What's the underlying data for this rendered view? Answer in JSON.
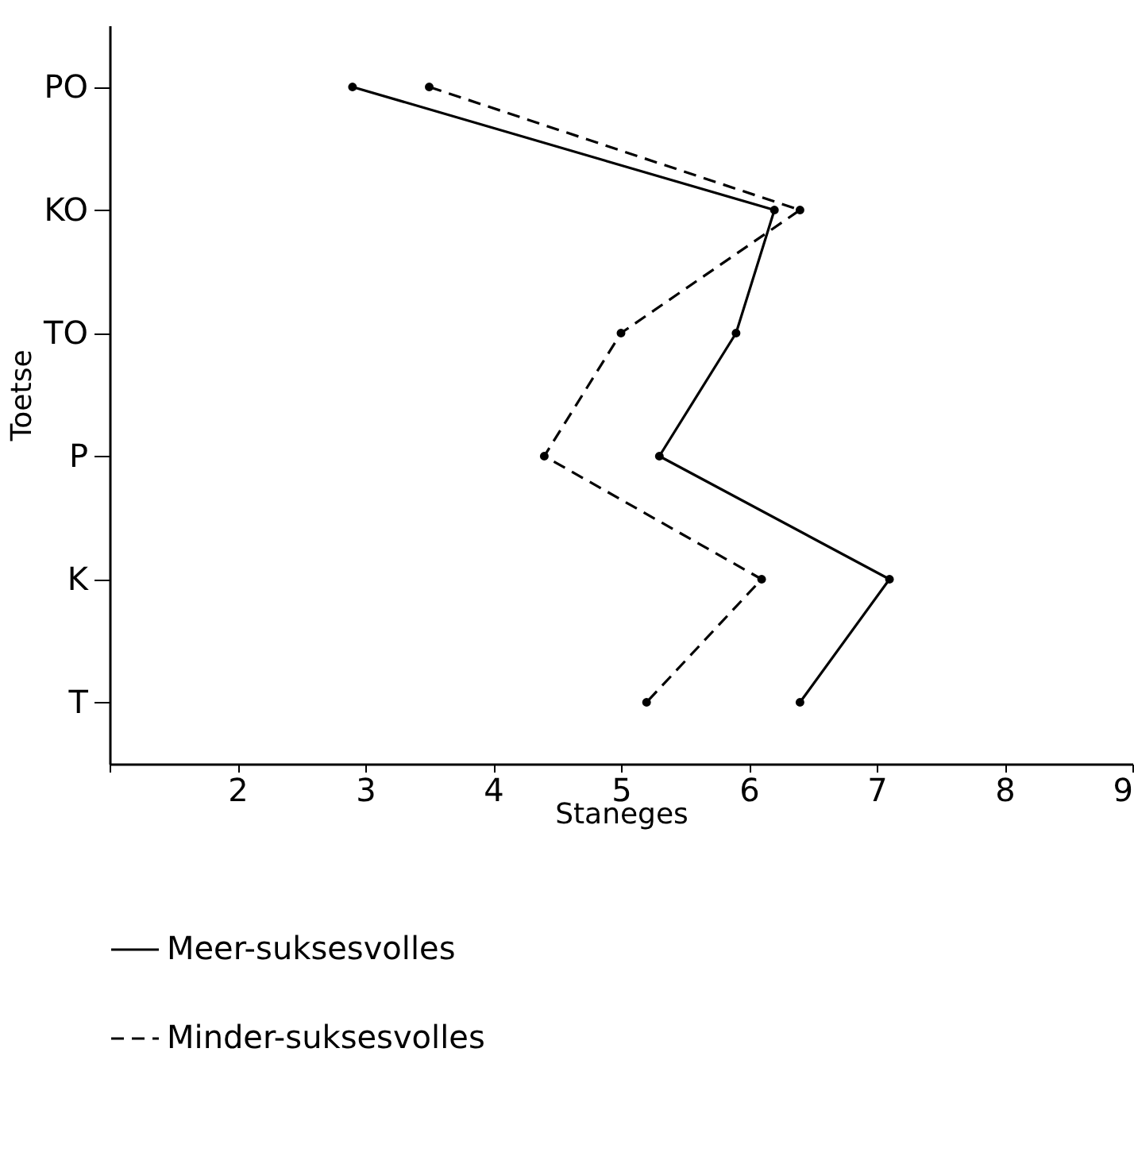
{
  "chart_data": {
    "type": "line",
    "orientation": "horizontal",
    "xlabel": "Staneges",
    "ylabel": "Toetse",
    "categories": [
      "PO",
      "KO",
      "TO",
      "P",
      "K",
      "T"
    ],
    "xlim": [
      1,
      9
    ],
    "xticks": [
      {
        "value": 1,
        "label": null
      },
      2,
      3,
      4,
      5,
      6,
      7,
      8,
      9
    ],
    "series": [
      {
        "name": "Meer-suksesvolles",
        "color": "#000000",
        "line_style": "solid",
        "values": [
          2.9,
          6.2,
          5.9,
          5.3,
          7.1,
          6.4
        ]
      },
      {
        "name": "Minder-suksesvolles",
        "color": "#000000",
        "line_style": "dashed",
        "values": [
          3.5,
          6.4,
          5.0,
          4.4,
          6.1,
          5.2
        ]
      }
    ],
    "marker": "circle",
    "grid": false,
    "legend": "bottom"
  }
}
